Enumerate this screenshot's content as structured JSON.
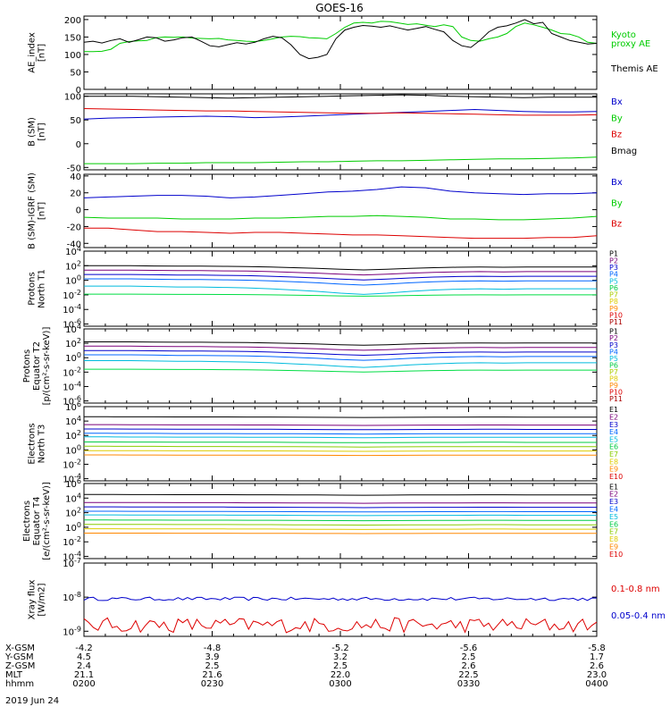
{
  "title": "GOES-16",
  "date_label": "2019 Jun 24",
  "chart_data": [
    {
      "type": "line",
      "id": "ae",
      "ylabel": [
        "AE_index",
        "[nT]"
      ],
      "ylim": [
        0,
        210
      ],
      "yscale": "linear",
      "yticks": [
        0,
        50,
        100,
        150,
        200
      ],
      "ytick_labels": [
        "0",
        "50",
        "100",
        "150",
        "200"
      ],
      "series": [
        {
          "name": "Kyoto proxy AE",
          "color": "#00cc00",
          "values": [
            108,
            108,
            109,
            115,
            132,
            137,
            139,
            140,
            148,
            150,
            149,
            150,
            147,
            146,
            145,
            146,
            142,
            140,
            138,
            137,
            140,
            145,
            150,
            152,
            151,
            148,
            147,
            145,
            160,
            178,
            190,
            192,
            190,
            195,
            194,
            190,
            186,
            188,
            184,
            180,
            185,
            180,
            150,
            140,
            138,
            145,
            150,
            160,
            180,
            190,
            185,
            178,
            170,
            160,
            158,
            150,
            135,
            132
          ]
        },
        {
          "name": "Themis AE",
          "color": "#000000",
          "values": [
            135,
            138,
            133,
            140,
            145,
            135,
            142,
            150,
            148,
            138,
            142,
            148,
            150,
            138,
            125,
            122,
            128,
            134,
            130,
            135,
            145,
            152,
            148,
            128,
            100,
            88,
            92,
            100,
            145,
            170,
            178,
            183,
            181,
            178,
            182,
            176,
            170,
            175,
            180,
            172,
            165,
            140,
            125,
            120,
            140,
            165,
            178,
            182,
            190,
            200,
            188,
            192,
            160,
            150,
            140,
            135,
            130,
            132
          ]
        }
      ],
      "legend": [
        {
          "text": "Kyoto",
          "color": "#00cc00"
        },
        {
          "text": "proxy AE",
          "color": "#00cc00"
        },
        {
          "text": "Themis AE",
          "color": "#000000"
        }
      ]
    },
    {
      "type": "line",
      "id": "bsm",
      "ylabel": [
        "B (SM)",
        "[nT]"
      ],
      "ylim": [
        -55,
        105
      ],
      "yscale": "linear",
      "yticks": [
        -50,
        0,
        50,
        100
      ],
      "ytick_labels": [
        "-50",
        "0",
        "50",
        "100"
      ],
      "series": [
        {
          "name": "Bx",
          "color": "#0000cc",
          "values": [
            52,
            54,
            55,
            56,
            57,
            58,
            57,
            55,
            56,
            58,
            60,
            62,
            64,
            66,
            68,
            70,
            72,
            70,
            68,
            67,
            67,
            68
          ]
        },
        {
          "name": "By",
          "color": "#00cc00",
          "values": [
            -42,
            -42,
            -42,
            -41,
            -41,
            -40,
            -40,
            -40,
            -39,
            -38,
            -38,
            -37,
            -36,
            -36,
            -35,
            -34,
            -33,
            -32,
            -32,
            -31,
            -30,
            -28
          ]
        },
        {
          "name": "Bz",
          "color": "#dd0000",
          "values": [
            74,
            73,
            72,
            71,
            70,
            69,
            69,
            68,
            67,
            66,
            65,
            64,
            64,
            65,
            64,
            63,
            62,
            61,
            60,
            60,
            60,
            61
          ]
        },
        {
          "name": "Bmag",
          "color": "#000000",
          "values": [
            100,
            100,
            100,
            99,
            98,
            97,
            96,
            97,
            98,
            99,
            100,
            101,
            102,
            103,
            102,
            100,
            99,
            98,
            97,
            98,
            98,
            98
          ]
        }
      ],
      "legend": [
        {
          "text": "Bx",
          "color": "#0000cc"
        },
        {
          "text": "By",
          "color": "#00cc00"
        },
        {
          "text": "Bz",
          "color": "#dd0000"
        },
        {
          "text": "Bmag",
          "color": "#000000"
        }
      ]
    },
    {
      "type": "line",
      "id": "bigrf",
      "ylabel": [
        "B (SM)-IGRF (SM)",
        "[nT]"
      ],
      "ylim": [
        -45,
        42
      ],
      "yscale": "linear",
      "yticks": [
        -40,
        -20,
        0,
        20,
        40
      ],
      "ytick_labels": [
        "-40",
        "-20",
        "0",
        "20",
        "40"
      ],
      "series": [
        {
          "name": "Bx",
          "color": "#0000cc",
          "values": [
            14,
            15,
            16,
            17,
            17,
            16,
            14,
            15,
            17,
            19,
            21,
            22,
            24,
            27,
            26,
            22,
            20,
            19,
            18,
            19,
            19,
            20
          ]
        },
        {
          "name": "By",
          "color": "#00cc00",
          "values": [
            -9,
            -10,
            -10,
            -10,
            -11,
            -11,
            -11,
            -10,
            -10,
            -9,
            -8,
            -8,
            -7,
            -8,
            -9,
            -11,
            -11,
            -12,
            -12,
            -11,
            -10,
            -8
          ]
        },
        {
          "name": "Bz",
          "color": "#dd0000",
          "values": [
            -22,
            -22,
            -24,
            -26,
            -26,
            -27,
            -28,
            -27,
            -27,
            -28,
            -29,
            -30,
            -30,
            -31,
            -32,
            -33,
            -34,
            -34,
            -34,
            -33,
            -33,
            -31
          ]
        }
      ],
      "legend": [
        {
          "text": "Bx",
          "color": "#0000cc"
        },
        {
          "text": "By",
          "color": "#00cc00"
        },
        {
          "text": "Bz",
          "color": "#dd0000"
        }
      ]
    },
    {
      "type": "line",
      "id": "pn",
      "ylabel": [
        "Protons",
        "North T1"
      ],
      "ylim": [
        -6.3,
        4
      ],
      "yscale": "log",
      "yticks": [
        4,
        2,
        0,
        -2,
        -4,
        -6
      ],
      "ytick_labels": [
        "10^4",
        "10^2",
        "10^0",
        "10^-2",
        "10^-4",
        "10^-6"
      ],
      "profile": [
        0,
        0,
        0,
        0.05,
        0.1,
        0.1,
        0.15,
        0.2,
        0.3,
        0.45,
        0.6,
        0.8,
        0.95,
        0.8,
        0.6,
        0.45,
        0.35,
        0.3,
        0.35,
        0.3,
        0.3,
        0.3,
        0.3
      ],
      "series": [
        {
          "name": "P1",
          "color": "#000000",
          "log_level": 2.0,
          "depth": 0.6
        },
        {
          "name": "P2",
          "color": "#7a007a",
          "log_level": 1.4,
          "depth": 0.7
        },
        {
          "name": "P3",
          "color": "#0000cc",
          "log_level": 0.8,
          "depth": 0.8
        },
        {
          "name": "P4",
          "color": "#0066ff",
          "log_level": 0.2,
          "depth": 0.9
        },
        {
          "name": "P5",
          "color": "#00bbdd",
          "log_level": -0.8,
          "depth": 1.2
        },
        {
          "name": "P6",
          "color": "#00dd44",
          "log_level": -1.9,
          "depth": 0.3
        }
      ],
      "legend": [
        {
          "text": "P1",
          "color": "#000000"
        },
        {
          "text": "P2",
          "color": "#7a007a"
        },
        {
          "text": "P3",
          "color": "#0000cc"
        },
        {
          "text": "P4",
          "color": "#0066ff"
        },
        {
          "text": "P5",
          "color": "#00bbdd"
        },
        {
          "text": "P6",
          "color": "#00cc44"
        },
        {
          "text": "P7",
          "color": "#aacc00"
        },
        {
          "text": "P8",
          "color": "#ddcc00"
        },
        {
          "text": "P9",
          "color": "#ff8800"
        },
        {
          "text": "P10",
          "color": "#dd0000"
        },
        {
          "text": "P11",
          "color": "#aa0000"
        }
      ]
    },
    {
      "type": "line",
      "id": "pe",
      "ylabel": [
        "Protons",
        "Equator T2",
        "[p/(cm²-s-sr-keV)]"
      ],
      "ylim": [
        -6.3,
        4
      ],
      "yscale": "log",
      "yticks": [
        4,
        2,
        0,
        -2,
        -4,
        -6
      ],
      "ytick_labels": [
        "10^4",
        "10^2",
        "10^0",
        "10^-2",
        "10^-4",
        "10^-6"
      ],
      "profile": [
        0,
        0,
        0,
        0.05,
        0.1,
        0.1,
        0.15,
        0.2,
        0.3,
        0.45,
        0.6,
        0.8,
        0.95,
        0.8,
        0.6,
        0.45,
        0.35,
        0.3,
        0.35,
        0.3,
        0.3,
        0.3,
        0.3
      ],
      "series": [
        {
          "name": "P1",
          "color": "#000000",
          "log_level": 2.2,
          "depth": 0.5
        },
        {
          "name": "P2",
          "color": "#7a007a",
          "log_level": 1.6,
          "depth": 0.6
        },
        {
          "name": "P3",
          "color": "#0000cc",
          "log_level": 1.0,
          "depth": 0.7
        },
        {
          "name": "P4",
          "color": "#0066ff",
          "log_level": 0.4,
          "depth": 0.8
        },
        {
          "name": "P5",
          "color": "#00bbdd",
          "log_level": -0.4,
          "depth": 1.0
        },
        {
          "name": "P6",
          "color": "#00dd44",
          "log_level": -1.6,
          "depth": 0.4
        }
      ],
      "legend": [
        {
          "text": "P1",
          "color": "#000000"
        },
        {
          "text": "P2",
          "color": "#7a007a"
        },
        {
          "text": "P3",
          "color": "#0000cc"
        },
        {
          "text": "P4",
          "color": "#0066ff"
        },
        {
          "text": "P5",
          "color": "#00bbdd"
        },
        {
          "text": "P6",
          "color": "#00cc44"
        },
        {
          "text": "P7",
          "color": "#aacc00"
        },
        {
          "text": "P8",
          "color": "#ddcc00"
        },
        {
          "text": "P9",
          "color": "#ff8800"
        },
        {
          "text": "P10",
          "color": "#dd0000"
        },
        {
          "text": "P11",
          "color": "#aa0000"
        }
      ]
    },
    {
      "type": "line",
      "id": "en",
      "ylabel": [
        "Electrons",
        "North T3"
      ],
      "ylim": [
        -4.3,
        6
      ],
      "yscale": "log",
      "yticks": [
        6,
        4,
        2,
        0,
        -2,
        -4
      ],
      "ytick_labels": [
        "10^6",
        "10^4",
        "10^2",
        "10^0",
        "10^-2",
        "10^-4"
      ],
      "profile": [
        0,
        0,
        0.05,
        0.05,
        0.1,
        0.1,
        0.1,
        0.15,
        0.15,
        0.2,
        0.25,
        0.3,
        0.35,
        0.3,
        0.25,
        0.2,
        0.2,
        0.15,
        0.15,
        0.2,
        0.2,
        0.2,
        0.2
      ],
      "series": [
        {
          "name": "E1",
          "color": "#000000",
          "log_level": 4.6,
          "depth": 0.3
        },
        {
          "name": "E2",
          "color": "#7a007a",
          "log_level": 3.5,
          "depth": 0.3
        },
        {
          "name": "E3",
          "color": "#0000cc",
          "log_level": 2.9,
          "depth": 0.3
        },
        {
          "name": "E4",
          "color": "#0066ff",
          "log_level": 2.3,
          "depth": 0.3
        },
        {
          "name": "E5",
          "color": "#00bbdd",
          "log_level": 1.8,
          "depth": 0.3
        },
        {
          "name": "E6",
          "color": "#00cc44",
          "log_level": 1.1,
          "depth": 0.3
        },
        {
          "name": "E7",
          "color": "#88cc00",
          "log_level": 0.5,
          "depth": 0.3
        },
        {
          "name": "E8",
          "color": "#ddcc00",
          "log_level": -0.1,
          "depth": 0.3
        },
        {
          "name": "E9",
          "color": "#ff8800",
          "log_level": -0.7,
          "depth": 0.2
        }
      ],
      "legend": [
        {
          "text": "E1",
          "color": "#000000"
        },
        {
          "text": "E2",
          "color": "#7a007a"
        },
        {
          "text": "E3",
          "color": "#0000cc"
        },
        {
          "text": "E4",
          "color": "#0066ff"
        },
        {
          "text": "E5",
          "color": "#00bbdd"
        },
        {
          "text": "E6",
          "color": "#00cc44"
        },
        {
          "text": "E7",
          "color": "#88cc00"
        },
        {
          "text": "E8",
          "color": "#ddcc00"
        },
        {
          "text": "E9",
          "color": "#ff8800"
        },
        {
          "text": "E10",
          "color": "#dd0000"
        }
      ]
    },
    {
      "type": "line",
      "id": "ee",
      "ylabel": [
        "Electrons",
        "Equator T4",
        "[e/(cm²-s-sr-keV)]"
      ],
      "ylim": [
        -4.3,
        6
      ],
      "yscale": "log",
      "yticks": [
        6,
        4,
        2,
        0,
        -2,
        -4
      ],
      "ytick_labels": [
        "10^6",
        "10^4",
        "10^2",
        "10^0",
        "10^-2",
        "10^-4"
      ],
      "profile": [
        0,
        0,
        0.05,
        0.05,
        0.1,
        0.1,
        0.1,
        0.15,
        0.15,
        0.2,
        0.25,
        0.3,
        0.35,
        0.3,
        0.25,
        0.2,
        0.2,
        0.15,
        0.15,
        0.2,
        0.2,
        0.2,
        0.2
      ],
      "series": [
        {
          "name": "E1",
          "color": "#000000",
          "log_level": 4.5,
          "depth": 0.3
        },
        {
          "name": "E2",
          "color": "#7a007a",
          "log_level": 3.4,
          "depth": 0.3
        },
        {
          "name": "E3",
          "color": "#0000cc",
          "log_level": 2.8,
          "depth": 0.3
        },
        {
          "name": "E4",
          "color": "#0066ff",
          "log_level": 2.2,
          "depth": 0.3
        },
        {
          "name": "E5",
          "color": "#00bbdd",
          "log_level": 1.7,
          "depth": 0.3
        },
        {
          "name": "E6",
          "color": "#00cc44",
          "log_level": 1.0,
          "depth": 0.3
        },
        {
          "name": "E7",
          "color": "#88cc00",
          "log_level": 0.4,
          "depth": 0.3
        },
        {
          "name": "E8",
          "color": "#ddcc00",
          "log_level": -0.2,
          "depth": 0.3
        },
        {
          "name": "E9",
          "color": "#ff8800",
          "log_level": -0.8,
          "depth": 0.2
        }
      ],
      "legend": [
        {
          "text": "E1",
          "color": "#000000"
        },
        {
          "text": "E2",
          "color": "#7a007a"
        },
        {
          "text": "E3",
          "color": "#0000cc"
        },
        {
          "text": "E4",
          "color": "#0066ff"
        },
        {
          "text": "E5",
          "color": "#00bbdd"
        },
        {
          "text": "E6",
          "color": "#00cc44"
        },
        {
          "text": "E7",
          "color": "#88cc00"
        },
        {
          "text": "E8",
          "color": "#ddcc00"
        },
        {
          "text": "E9",
          "color": "#ff8800"
        },
        {
          "text": "E10",
          "color": "#dd0000"
        }
      ]
    },
    {
      "type": "line",
      "id": "xray",
      "ylabel": [
        "Xray flux",
        "[W/m2]"
      ],
      "ylim": [
        -9.15,
        -7
      ],
      "yscale": "log",
      "yticks": [
        -7,
        -8,
        -9
      ],
      "ytick_labels": [
        "10^-7",
        "10^-8",
        "10^-9"
      ],
      "series": [
        {
          "name": "0.05-0.4 nm",
          "color": "#0000cc",
          "log_level": -8.05,
          "noise": 0.05,
          "count": 110
        },
        {
          "name": "0.1-0.8 nm",
          "color": "#dd0000",
          "log_level": -8.82,
          "noise": 0.22,
          "count": 110
        }
      ],
      "legend": [
        {
          "text": "0.1-0.8 nm",
          "color": "#dd0000"
        },
        {
          "text": "0.05-0.4 nm",
          "color": "#0000cc"
        }
      ]
    }
  ],
  "x_axis": {
    "rows": [
      {
        "label": "X-GSM",
        "values": [
          "-4.2",
          "-4.8",
          "-5.2",
          "-5.6",
          "-5.8"
        ]
      },
      {
        "label": "Y-GSM",
        "values": [
          "4.5",
          "3.9",
          "3.2",
          "2.5",
          "1.7"
        ]
      },
      {
        "label": "Z-GSM",
        "values": [
          "2.4",
          "2.5",
          "2.5",
          "2.6",
          "2.6"
        ]
      },
      {
        "label": "MLT",
        "values": [
          "21.1",
          "21.6",
          "22.0",
          "22.5",
          "23.0"
        ]
      },
      {
        "label": "hhmm",
        "values": [
          "0200",
          "0230",
          "0300",
          "0330",
          "0400"
        ]
      }
    ]
  }
}
